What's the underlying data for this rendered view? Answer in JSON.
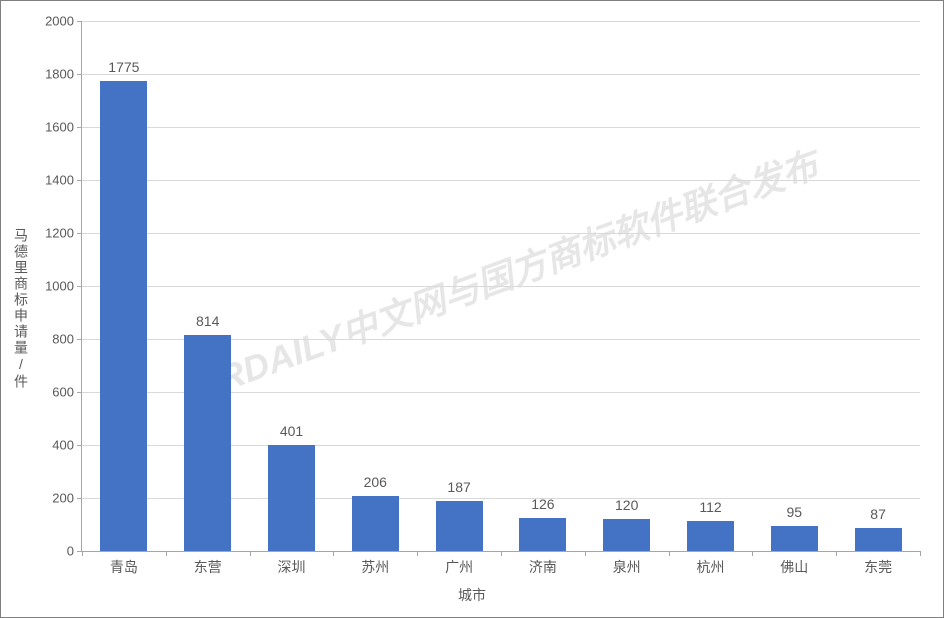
{
  "chart": {
    "type": "bar",
    "background_color": "#ffffff",
    "border_color": "#7f7f7f",
    "plot_border_color": "#a6a6a6",
    "grid_color": "#d9d9d9",
    "bar_color": "#4472c4",
    "text_color": "#595959",
    "label_fontsize": 14,
    "tick_fontsize": 13,
    "bar_width_ratio": 0.56,
    "ylim": [
      0,
      2000
    ],
    "ytick_step": 200,
    "yticks": [
      0,
      200,
      400,
      600,
      800,
      1000,
      1200,
      1400,
      1600,
      1800,
      2000
    ],
    "ylabel": "马德里商标申请量/件",
    "xlabel": "城市",
    "categories": [
      "青岛",
      "东营",
      "深圳",
      "苏州",
      "广州",
      "济南",
      "泉州",
      "杭州",
      "佛山",
      "东莞"
    ],
    "values": [
      1775,
      814,
      401,
      206,
      187,
      126,
      120,
      112,
      95,
      87
    ],
    "watermark": "IPRDAILY中文网与国方商标软件联合发布",
    "watermark_color_rgba": "rgba(128,128,128,0.20)"
  }
}
